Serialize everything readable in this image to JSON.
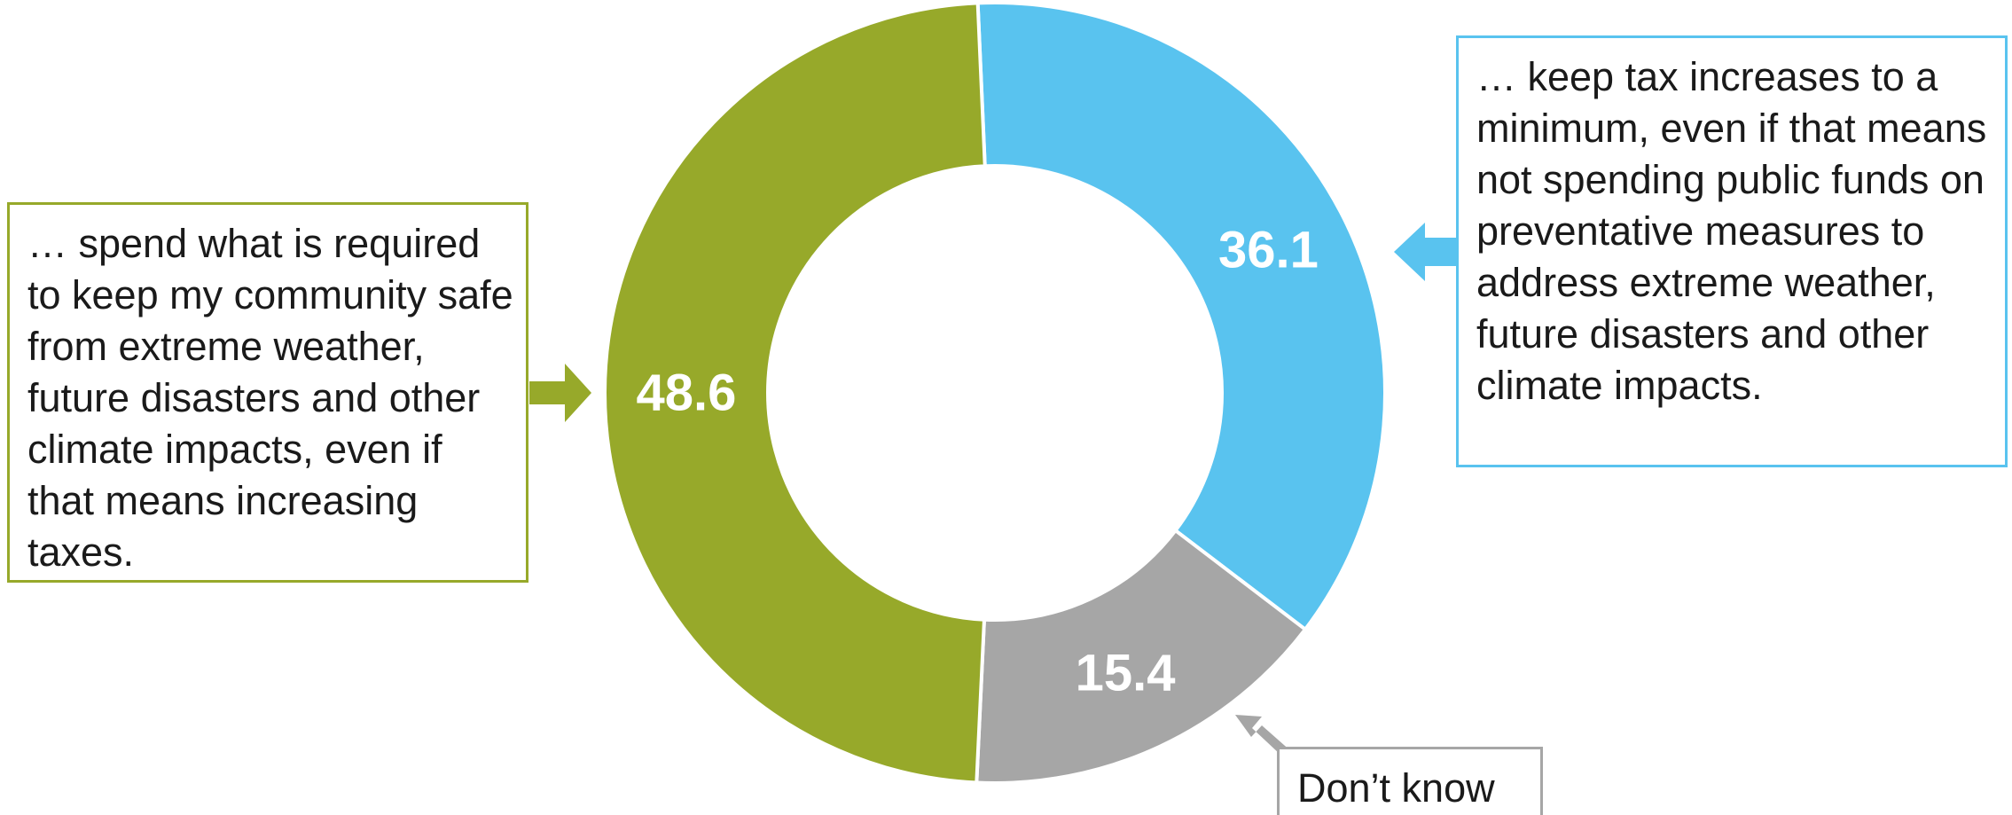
{
  "chart_data": {
    "type": "pie",
    "variant": "donut",
    "slices": [
      {
        "label": "… keep tax increases to a minimum, even if that means not spending public funds on preventative measures to address extreme weather, future disasters and other climate impacts.",
        "value": 36.1,
        "value_label": "36.1",
        "color": "#59c3ef"
      },
      {
        "label": "Don’t know",
        "value": 15.4,
        "value_label": "15.4",
        "color": "#a6a6a6"
      },
      {
        "label": "… spend what is required to keep my community safe from extreme weather, future disasters and other climate impacts, even if that means increasing taxes.",
        "value": 48.6,
        "value_label": "48.6",
        "color": "#97a92a"
      }
    ],
    "start": "top, clockwise",
    "legend": "callout boxes with arrows"
  },
  "callouts": {
    "left": "… spend what is required to keep my community safe from extreme weather, future disasters and other climate impacts, even if that means increasing taxes.",
    "right": "… keep tax increases to a minimum, even if that means not spending public funds on preventative measures to address extreme weather, future disasters and other climate impacts.",
    "bottom": "Don’t know"
  },
  "colors": {
    "blue": "#59c3ef",
    "gray": "#a6a6a6",
    "green": "#97a92a",
    "label_text": "#ffffff",
    "box_text": "#1a1a1a"
  }
}
